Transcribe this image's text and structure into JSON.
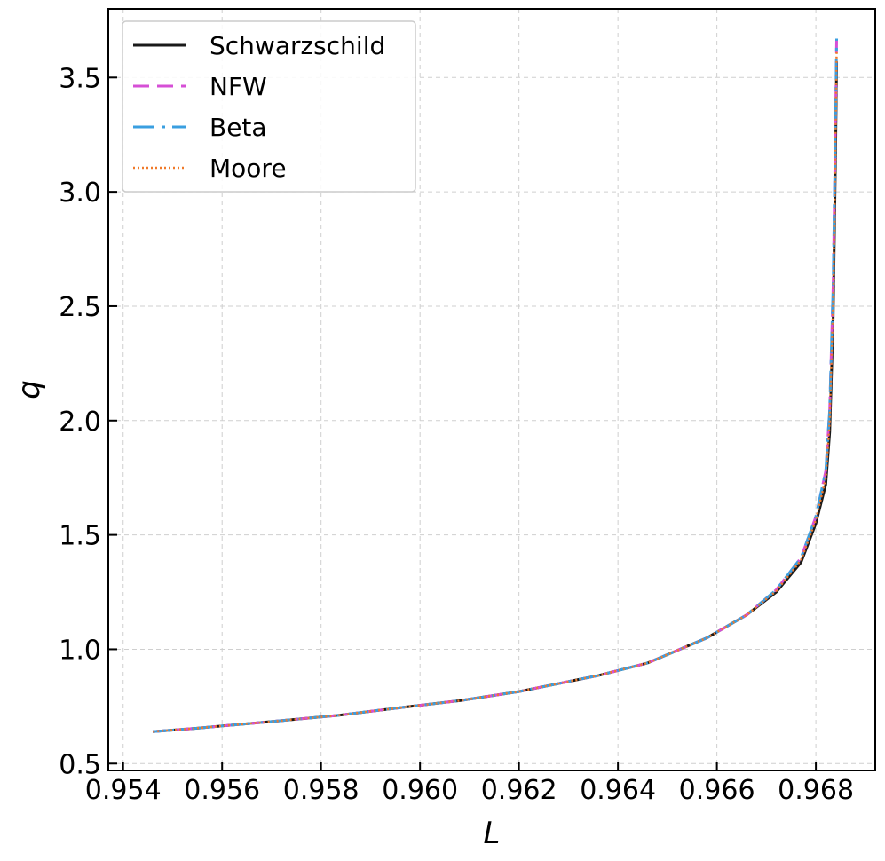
{
  "chart_data": {
    "type": "line",
    "title": "",
    "xlabel": "L",
    "ylabel": "q",
    "xlim": [
      0.9537,
      0.9692
    ],
    "ylim": [
      0.47,
      3.8
    ],
    "xticks": [
      0.954,
      0.956,
      0.958,
      0.96,
      0.962,
      0.964,
      0.966,
      0.968
    ],
    "xtick_labels": [
      "0.954",
      "0.956",
      "0.958",
      "0.960",
      "0.962",
      "0.964",
      "0.966",
      "0.968"
    ],
    "yticks": [
      0.5,
      1.0,
      1.5,
      2.0,
      2.5,
      3.0,
      3.5
    ],
    "ytick_labels": [
      "0.5",
      "1.0",
      "1.5",
      "2.0",
      "2.5",
      "3.0",
      "3.5"
    ],
    "grid": true,
    "legend_position": "top-left",
    "x": [
      0.9546,
      0.9555,
      0.957,
      0.9583,
      0.9598,
      0.9608,
      0.962,
      0.9636,
      0.9646,
      0.9658,
      0.9666,
      0.9672,
      0.9677,
      0.968,
      0.9682,
      0.96828,
      0.96835,
      0.9684,
      0.96842
    ],
    "series": [
      {
        "name": "Schwarzschild",
        "color": "#1a1a1a",
        "dash": "solid",
        "values": [
          0.64,
          0.655,
          0.684,
          0.71,
          0.75,
          0.775,
          0.815,
          0.885,
          0.94,
          1.05,
          1.15,
          1.25,
          1.38,
          1.55,
          1.72,
          1.95,
          2.45,
          3.2,
          3.57
        ]
      },
      {
        "name": "NFW",
        "color": "#d64fd6",
        "dash": "dashed",
        "values": [
          0.64,
          0.655,
          0.684,
          0.71,
          0.75,
          0.775,
          0.815,
          0.885,
          0.94,
          1.05,
          1.15,
          1.26,
          1.4,
          1.58,
          1.78,
          2.05,
          2.6,
          3.35,
          3.67
        ]
      },
      {
        "name": "Beta",
        "color": "#3a9fe0",
        "dash": "dashdot",
        "values": [
          0.64,
          0.655,
          0.684,
          0.71,
          0.75,
          0.775,
          0.815,
          0.885,
          0.94,
          1.05,
          1.15,
          1.26,
          1.4,
          1.58,
          1.78,
          2.05,
          2.6,
          3.35,
          3.67
        ]
      },
      {
        "name": "Moore",
        "color": "#f07a2a",
        "dash": "dotted",
        "values": [
          0.64,
          0.655,
          0.684,
          0.71,
          0.75,
          0.775,
          0.815,
          0.885,
          0.94,
          1.05,
          1.15,
          1.255,
          1.39,
          1.565,
          1.75,
          2.0,
          2.52,
          3.28,
          3.62
        ]
      }
    ]
  }
}
